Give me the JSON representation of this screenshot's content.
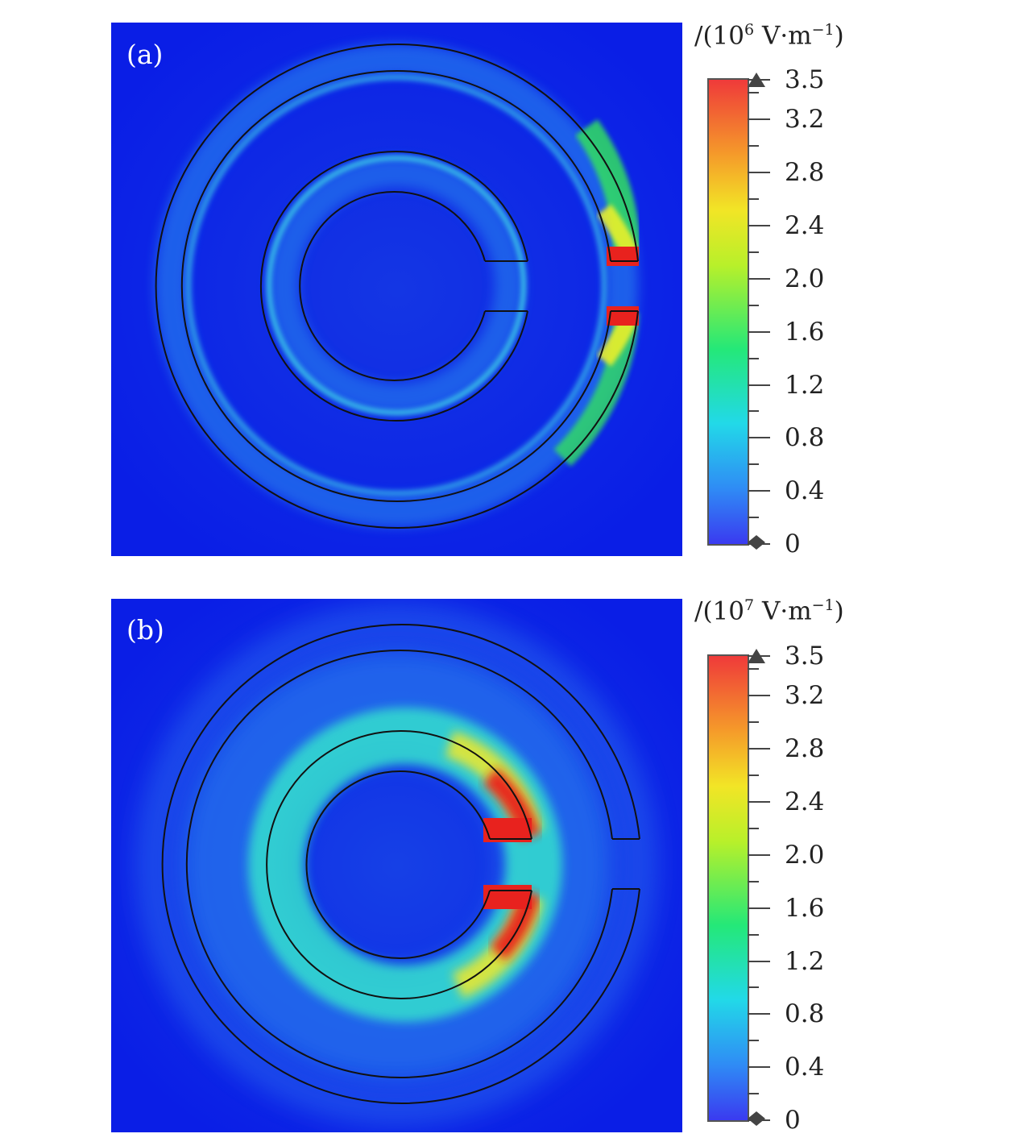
{
  "panels": [
    {
      "label": "(a)",
      "unit": {
        "prefix": "/(10",
        "exponent": "6",
        "suffix": " V·m",
        "unit_exponent": "−1",
        "close": ")"
      },
      "colorbar": {
        "ticks": [
          "3.5",
          "3.2",
          "2.8",
          "2.4",
          "2.0",
          "1.6",
          "1.2",
          "0.8",
          "0.4",
          "0"
        ]
      }
    },
    {
      "label": "(b)",
      "unit": {
        "prefix": "/(10",
        "exponent": "7",
        "suffix": " V·m",
        "unit_exponent": "−1",
        "close": ")"
      },
      "colorbar": {
        "ticks": [
          "3.5",
          "3.2",
          "2.8",
          "2.4",
          "2.0",
          "1.6",
          "1.2",
          "0.8",
          "0.4",
          "0"
        ]
      }
    }
  ],
  "colors": {
    "background_field": "#0a1ee6",
    "high": "#e8221e",
    "mid": "#30e86a",
    "low_glow": "#25c8ee",
    "outline": "#111111"
  }
}
